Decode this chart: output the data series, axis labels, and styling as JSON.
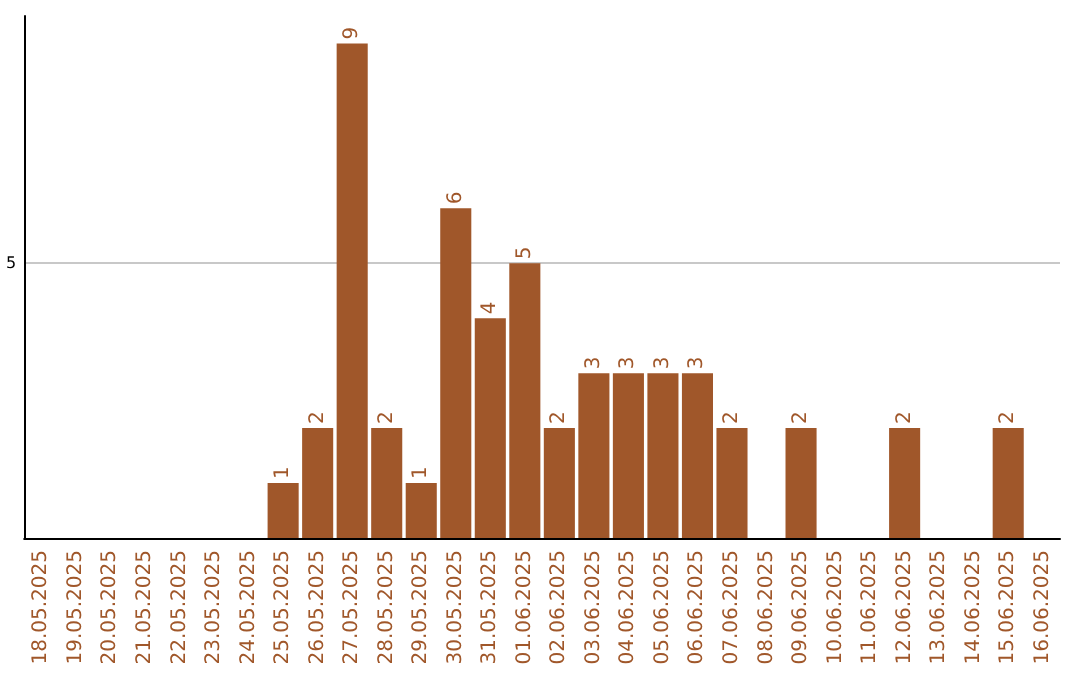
{
  "chart_data": {
    "type": "bar",
    "categories": [
      "18.05.2025",
      "19.05.2025",
      "20.05.2025",
      "21.05.2025",
      "22.05.2025",
      "23.05.2025",
      "24.05.2025",
      "25.05.2025",
      "26.05.2025",
      "27.05.2025",
      "28.05.2025",
      "29.05.2025",
      "30.05.2025",
      "31.05.2025",
      "01.06.2025",
      "02.06.2025",
      "03.06.2025",
      "04.06.2025",
      "05.06.2025",
      "06.06.2025",
      "07.06.2025",
      "08.06.2025",
      "09.06.2025",
      "10.06.2025",
      "11.06.2025",
      "12.06.2025",
      "13.06.2025",
      "14.06.2025",
      "15.06.2025",
      "16.06.2025"
    ],
    "values": [
      null,
      null,
      null,
      null,
      null,
      null,
      null,
      1,
      2,
      9,
      2,
      1,
      6,
      4,
      5,
      2,
      3,
      3,
      3,
      3,
      2,
      null,
      2,
      null,
      null,
      2,
      null,
      null,
      2,
      null
    ],
    "color": "#a0572a",
    "ylim": [
      0,
      9.5
    ],
    "yticks": [
      5
    ],
    "grid": "y",
    "data_labels": true
  }
}
